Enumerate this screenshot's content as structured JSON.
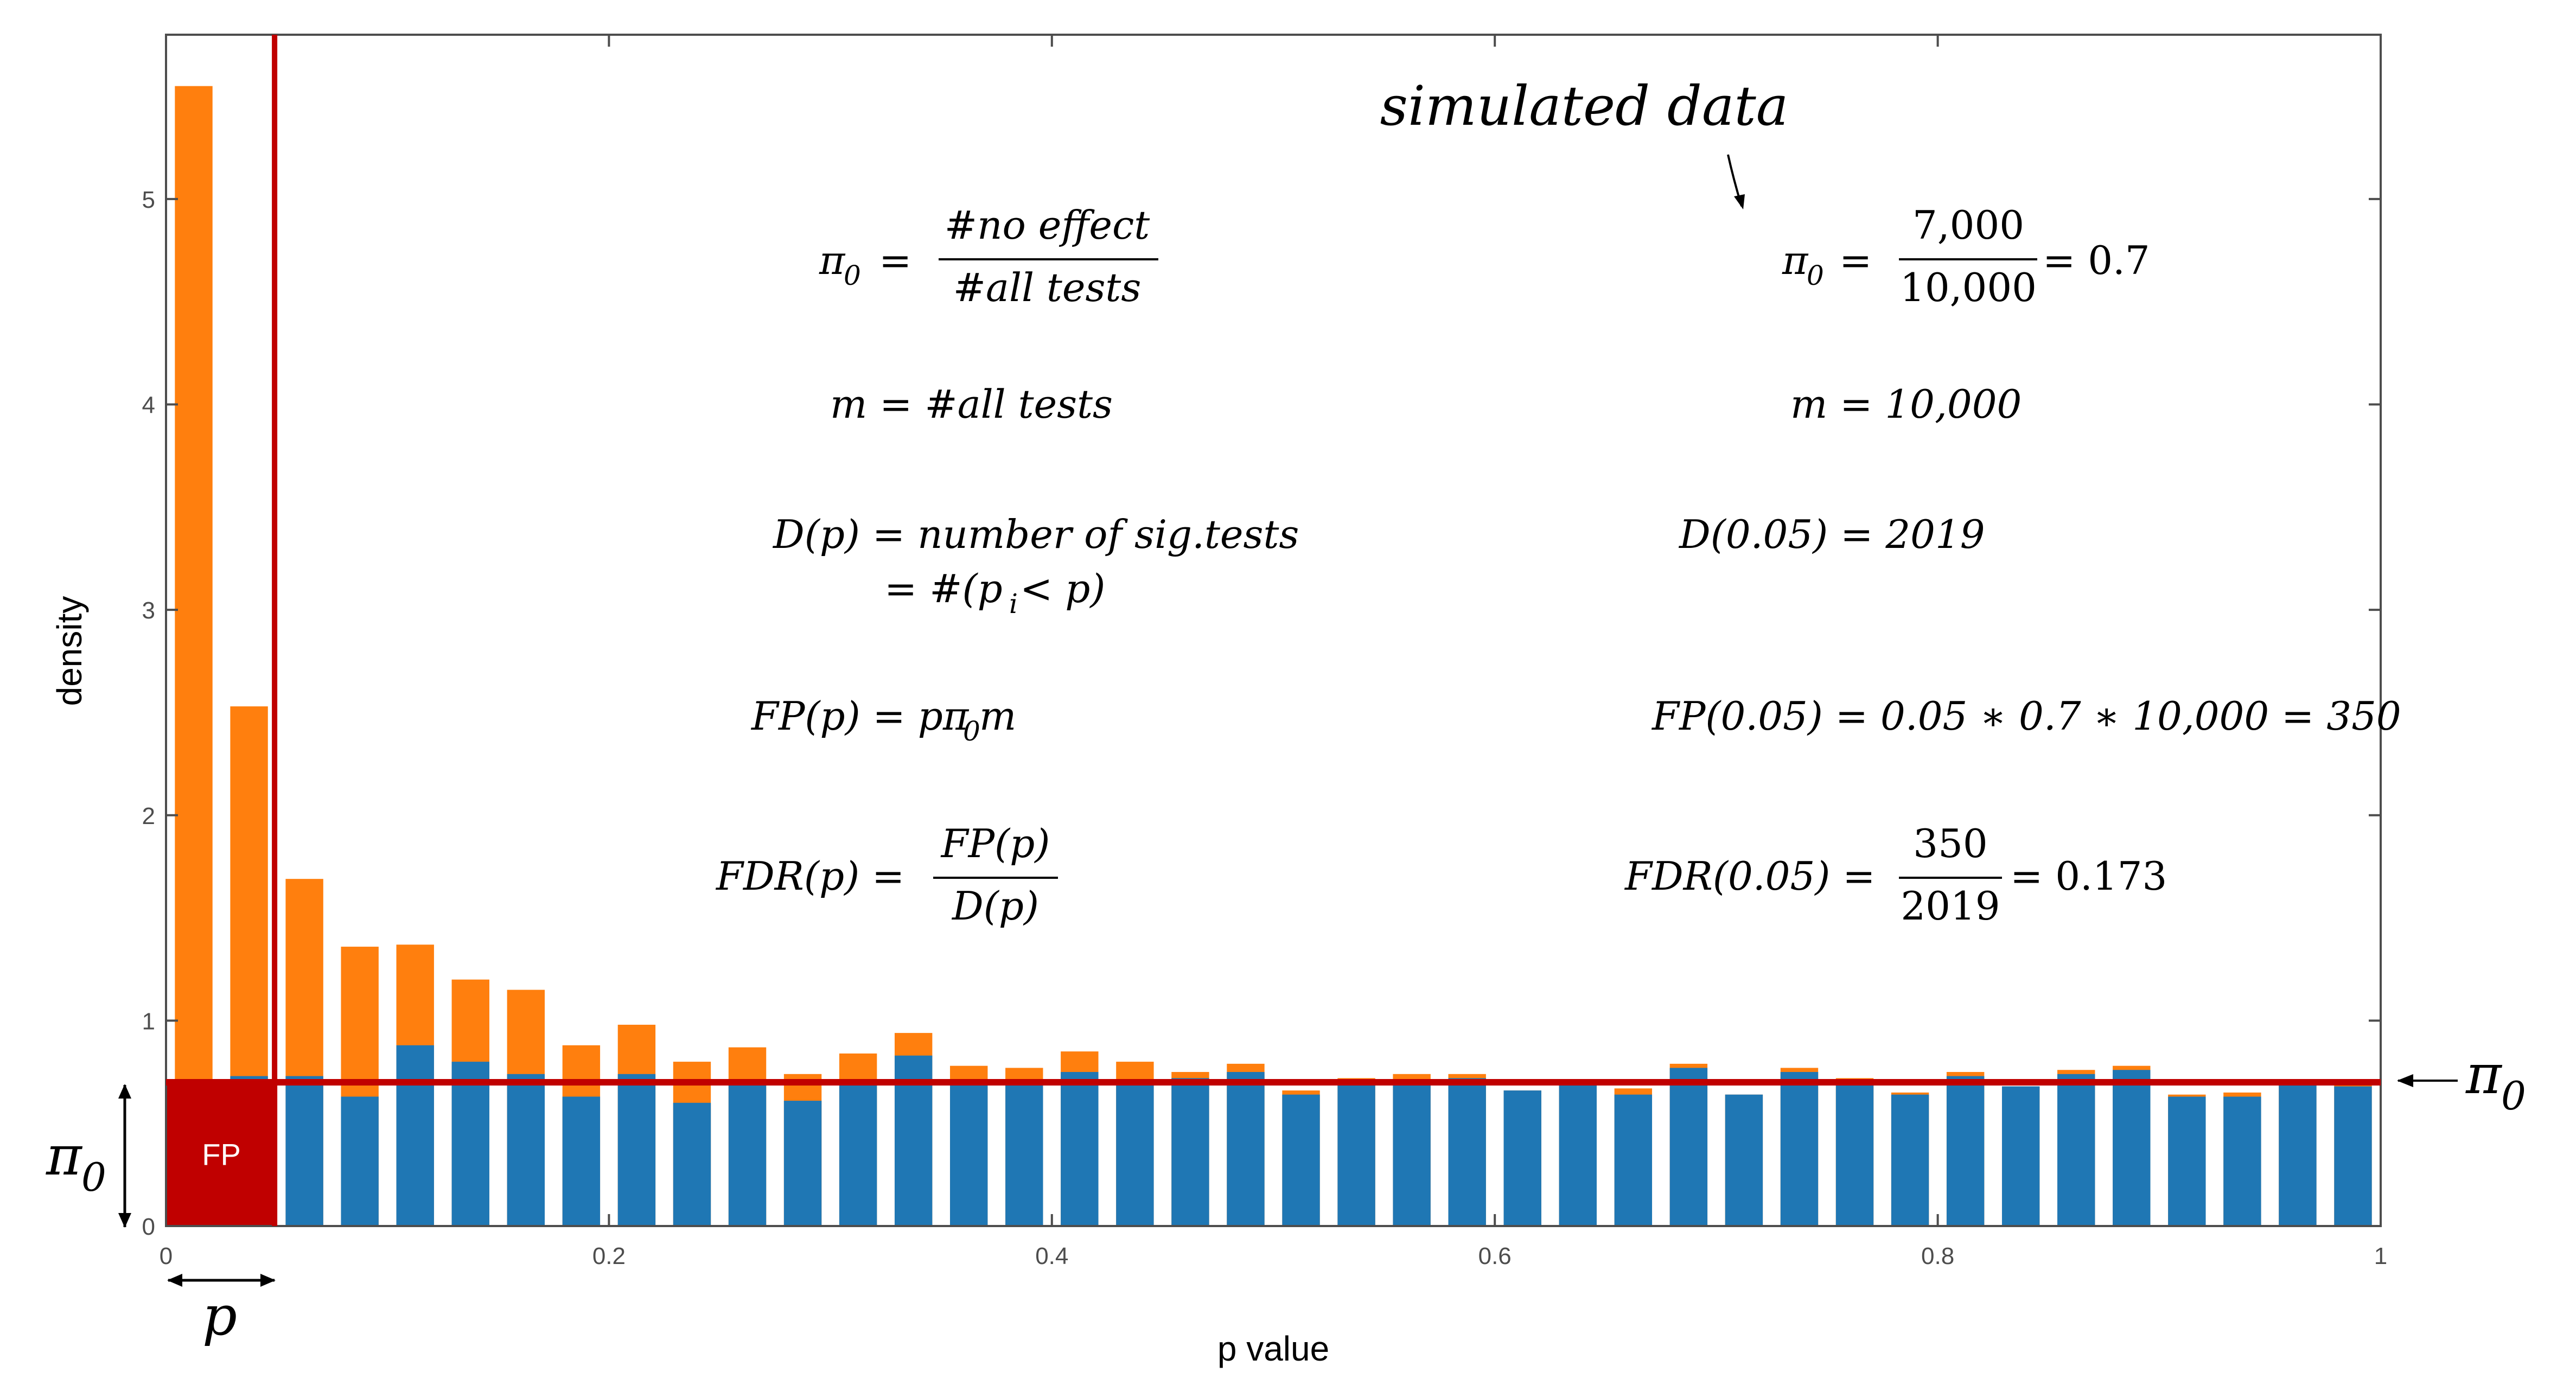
{
  "chart_data": {
    "type": "bar",
    "xlabel": "p value",
    "ylabel": "density",
    "xlim": [
      0,
      1
    ],
    "ylim": [
      0,
      5.8
    ],
    "xticks": [
      0,
      0.2,
      0.4,
      0.6,
      0.8,
      1
    ],
    "xtick_labels": [
      "0",
      "0.2",
      "0.4",
      "0.6",
      "0.8",
      "1"
    ],
    "yticks": [
      0,
      1,
      2,
      3,
      4,
      5
    ],
    "ytick_labels": [
      "0",
      "1",
      "2",
      "3",
      "4",
      "5"
    ],
    "bin_width": 0.025,
    "bin_centers": [
      0.0125,
      0.0375,
      0.0625,
      0.0875,
      0.1125,
      0.1375,
      0.1625,
      0.1875,
      0.2125,
      0.2375,
      0.2625,
      0.2875,
      0.3125,
      0.3375,
      0.3625,
      0.3875,
      0.4125,
      0.4375,
      0.4625,
      0.4875,
      0.5125,
      0.5375,
      0.5625,
      0.5875,
      0.6125,
      0.6375,
      0.6625,
      0.6875,
      0.7125,
      0.7375,
      0.7625,
      0.7875,
      0.8125,
      0.8375,
      0.8625,
      0.8875,
      0.9125,
      0.9375,
      0.9625,
      0.9875
    ],
    "series": [
      {
        "color": "#ff7f0e",
        "values": [
          5.55,
          2.53,
          1.69,
          1.36,
          1.37,
          1.2,
          1.15,
          0.88,
          0.98,
          0.8,
          0.87,
          0.74,
          0.84,
          0.94,
          0.78,
          0.77,
          0.85,
          0.8,
          0.75,
          0.79,
          0.66,
          0.72,
          0.74,
          0.74,
          0.66,
          0.7,
          0.67,
          0.79,
          0.64,
          0.77,
          0.72,
          0.65,
          0.75,
          0.68,
          0.76,
          0.78,
          0.64,
          0.65,
          0.7,
          0.7
        ]
      },
      {
        "color": "#1f77b4",
        "values": [
          0.7,
          0.73,
          0.73,
          0.63,
          0.88,
          0.8,
          0.74,
          0.63,
          0.74,
          0.6,
          0.71,
          0.61,
          0.7,
          0.83,
          0.7,
          0.71,
          0.75,
          0.71,
          0.72,
          0.75,
          0.64,
          0.7,
          0.7,
          0.72,
          0.66,
          0.7,
          0.64,
          0.77,
          0.64,
          0.75,
          0.7,
          0.64,
          0.73,
          0.68,
          0.74,
          0.76,
          0.63,
          0.63,
          0.7,
          0.68
        ]
      }
    ],
    "threshold_line": {
      "x": 0.05,
      "color": "#c00000"
    },
    "pi0_line": {
      "y": 0.7,
      "color": "#c00000"
    },
    "fp_region": {
      "x0": 0,
      "x1": 0.05,
      "y": 0.7,
      "color": "#c00000",
      "label": "FP"
    },
    "annotations": {
      "simulated_label": "simulated data",
      "pi0_side_label": "π",
      "pi0_side_sub": "0",
      "pi0_axis_label": "π",
      "pi0_axis_sub": "0",
      "p_label": "p",
      "left_formulas": {
        "pi0_lhs": "π",
        "pi0_sub": "0",
        "pi0_eq": "=",
        "pi0_num": "#no effect",
        "pi0_den": "#all tests",
        "m_def": "m = #all tests",
        "D_def1": "D(p) = number of sig.tests",
        "D_def2_a": "= #(p",
        "D_def2_sub": "i",
        "D_def2_b": " < p)",
        "FP_def_a": "FP(p) = pπ",
        "FP_def_sub": "0",
        "FP_def_b": "m",
        "FDR_lhs": "FDR(p) =",
        "FDR_num": "FP(p)",
        "FDR_den": "D(p)"
      },
      "right_formulas": {
        "pi0_lhs": "π",
        "pi0_sub": "0",
        "pi0_eq": "=",
        "pi0_num": "7,000",
        "pi0_den": "10,000",
        "pi0_result": "= 0.7",
        "m_val": "m = 10,000",
        "D_val": "D(0.05) = 2019",
        "FP_val": "FP(0.05) = 0.05 ∗ 0.7 ∗ 10,000 = 350",
        "FDR_lhs": "FDR(0.05) =",
        "FDR_num": "350",
        "FDR_den": "2019",
        "FDR_result": "= 0.173"
      }
    }
  }
}
